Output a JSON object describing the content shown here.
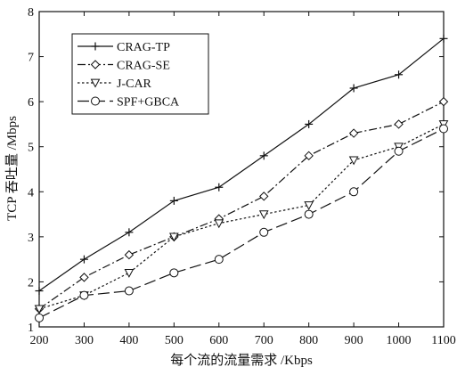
{
  "chart_data": {
    "type": "line",
    "xlabel": "每个流的流量需求 /Kbps",
    "ylabel": "TCP 吞吐量 /Mbps",
    "x": [
      200,
      300,
      400,
      500,
      600,
      700,
      800,
      900,
      1000,
      1100
    ],
    "xlim": [
      200,
      1100
    ],
    "ylim": [
      1,
      8
    ],
    "x_ticks": [
      "200",
      "300",
      "400",
      "500",
      "600",
      "700",
      "800",
      "900",
      "1000",
      "1100"
    ],
    "y_ticks": [
      "1",
      "2",
      "3",
      "4",
      "5",
      "6",
      "7",
      "8"
    ],
    "grid": false,
    "legend_position": "top-left",
    "series": [
      {
        "name": "CRAG-TP",
        "marker": "plus",
        "dash": "solid",
        "values": [
          1.8,
          2.5,
          3.1,
          3.8,
          4.1,
          4.8,
          5.5,
          6.3,
          6.6,
          7.4
        ]
      },
      {
        "name": "CRAG-SE",
        "marker": "diamond",
        "dash": "dashdot",
        "values": [
          1.4,
          2.1,
          2.6,
          3.0,
          3.4,
          3.9,
          4.8,
          5.3,
          5.5,
          6.0
        ]
      },
      {
        "name": "J-CAR",
        "marker": "triangle-down",
        "dash": "dotted",
        "values": [
          1.4,
          1.7,
          2.2,
          3.0,
          3.3,
          3.5,
          3.7,
          4.7,
          5.0,
          5.5
        ]
      },
      {
        "name": "SPF+GBCA",
        "marker": "circle",
        "dash": "longdash",
        "values": [
          1.2,
          1.7,
          1.8,
          2.2,
          2.5,
          3.1,
          3.5,
          4.0,
          4.9,
          5.4
        ]
      }
    ]
  }
}
